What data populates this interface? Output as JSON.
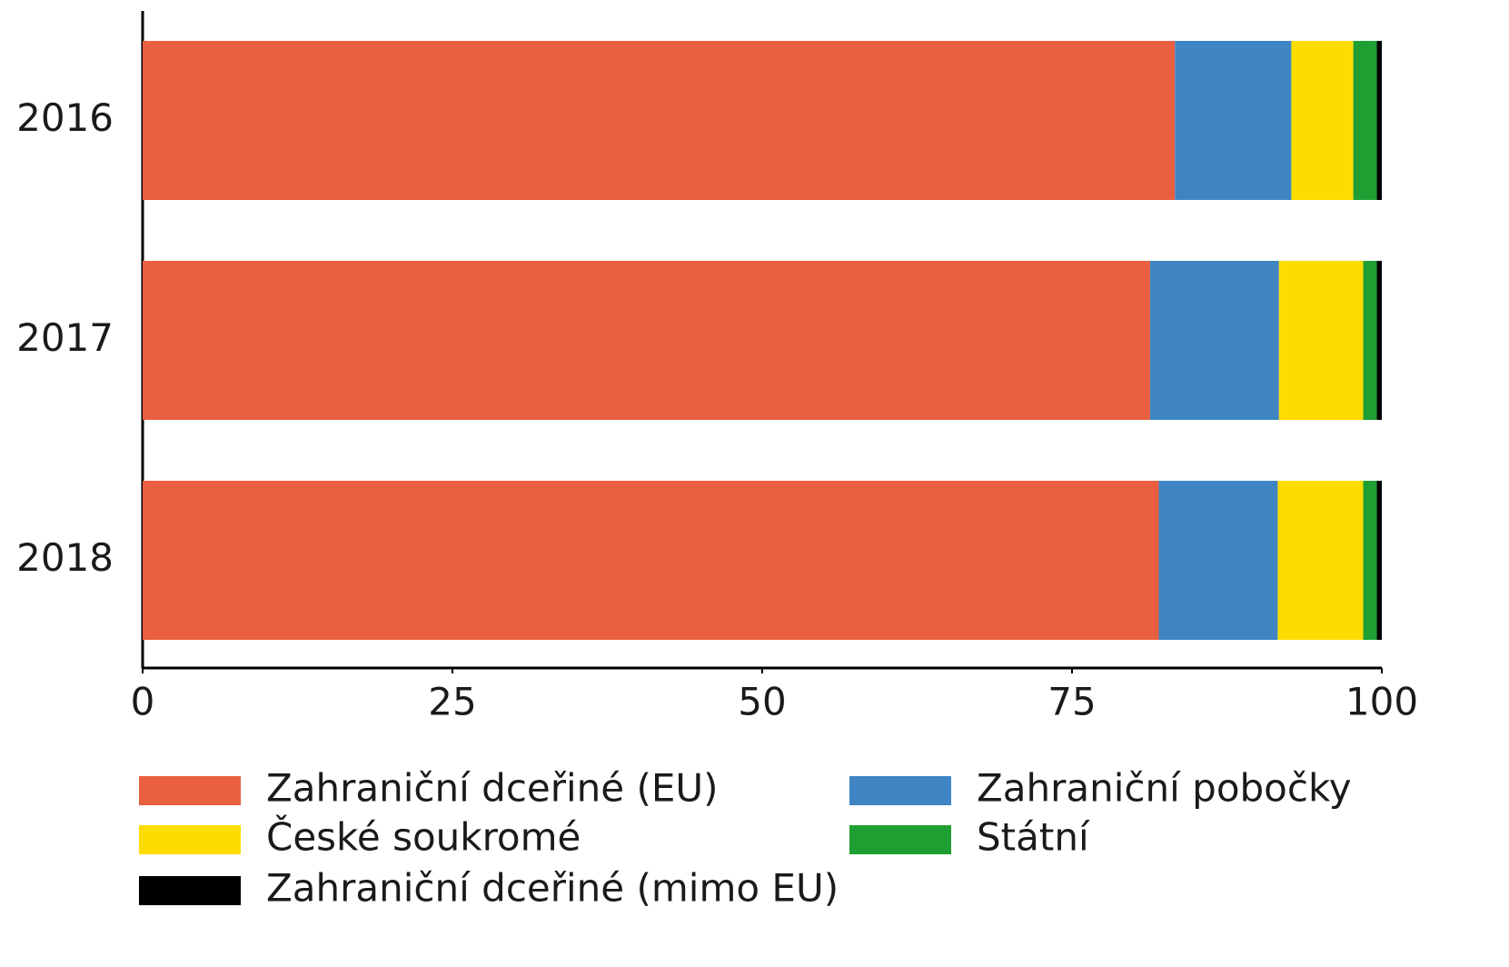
{
  "chart_data": {
    "type": "bar",
    "orientation": "horizontal",
    "stacked": true,
    "categories": [
      "2016",
      "2017",
      "2018"
    ],
    "series": [
      {
        "name": "Zahraniční dceřiné (EU)",
        "color": "#e95f40",
        "values": [
          83.3,
          81.3,
          82.0
        ]
      },
      {
        "name": "Zahraniční pobočky",
        "color": "#3f85c3",
        "values": [
          9.4,
          10.4,
          9.6
        ]
      },
      {
        "name": "České soukromé",
        "color": "#ffdc00",
        "values": [
          5.0,
          6.8,
          6.9
        ]
      },
      {
        "name": "Státní",
        "color": "#1f9e32",
        "values": [
          1.9,
          1.1,
          1.1
        ]
      },
      {
        "name": "Zahraniční dceřiné (mimo EU)",
        "color": "#000000",
        "values": [
          0.4,
          0.4,
          0.4
        ]
      }
    ],
    "xlim": [
      0,
      100
    ],
    "xticks": [
      0,
      25,
      50,
      75,
      100
    ],
    "grid": false,
    "legend": "bottom"
  }
}
